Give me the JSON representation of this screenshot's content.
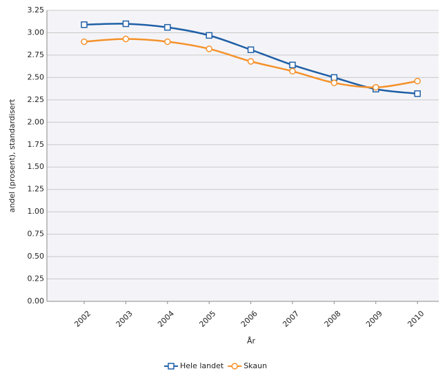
{
  "chart_data": {
    "type": "line",
    "y_label": "andel (prosent), standardisert",
    "x_label": "År",
    "categories": [
      "2002",
      "2003",
      "2004",
      "2005",
      "2006",
      "2007",
      "2008",
      "2009",
      "2010"
    ],
    "series": [
      {
        "name": "Hele landet",
        "color": "#1f5fa6",
        "marker": "square",
        "values": [
          3.09,
          3.1,
          3.06,
          2.97,
          2.81,
          2.64,
          2.5,
          2.37,
          2.32
        ]
      },
      {
        "name": "Skaun",
        "color": "#f5912a",
        "marker": "circle",
        "values": [
          2.9,
          2.93,
          2.9,
          2.82,
          2.68,
          2.57,
          2.44,
          2.39,
          2.46
        ]
      }
    ],
    "ylim": [
      0,
      3.25
    ],
    "yticks": [
      {
        "value": 0,
        "label": "0.00"
      },
      0.25,
      {
        "value": 0.5,
        "label": "0.50"
      },
      0.75,
      {
        "value": 1,
        "label": "1.00"
      },
      1.25,
      {
        "value": 1.5,
        "label": "1.50"
      },
      1.75,
      {
        "value": 2,
        "label": "2.00"
      },
      2.25,
      {
        "value": 2.5,
        "label": "2.50"
      },
      2.75,
      {
        "value": 3,
        "label": "3.00"
      },
      3.25
    ],
    "grid": true,
    "legend": "bottom"
  }
}
